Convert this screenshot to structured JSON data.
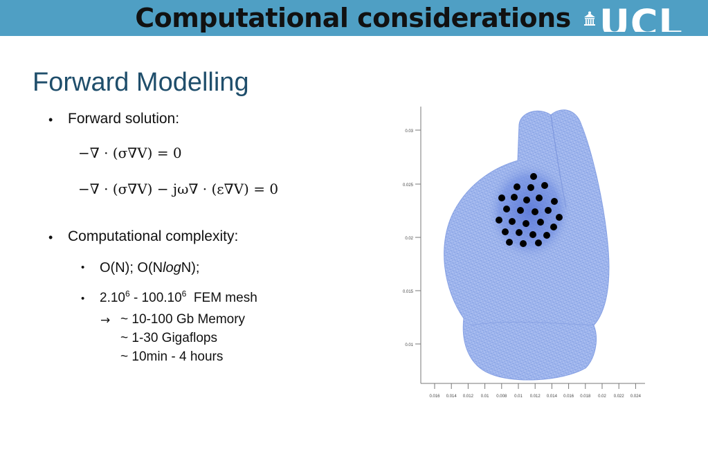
{
  "header": {
    "title": "Computational considerations",
    "logo_text": "UCL",
    "bar_color": "#4f9fc4"
  },
  "content": {
    "subheading": "Forward Modelling",
    "bullet_forward": "Forward solution:",
    "eq1": "−∇ · (σ∇V) = 0",
    "eq2": "−∇ · (σ∇V) − jω∇ · (ε∇V) = 0",
    "bullet_complexity": "Computational complexity:",
    "order_prefix": "O(N); O(N",
    "order_log": "log",
    "order_suffix": "N);",
    "mesh_a": "2.10",
    "mesh_exp_a": "6",
    "mesh_mid": " - 100.10",
    "mesh_exp_b": "6",
    "mesh_suffix": "  FEM mesh",
    "arrow": "→",
    "memory": "~ 10-100 Gb Memory",
    "gigaflops": "~ 1-30 Gigaflops",
    "time": "~ 10min - 4 hours"
  },
  "figure": {
    "y_ticks": [
      "0.03",
      "0.025",
      "0.02",
      "0.015",
      "0.01"
    ],
    "x_ticks": [
      "0.016",
      "0.014",
      "0.012",
      "0.01",
      "0.008",
      "0.01",
      "0.012",
      "0.014",
      "0.016",
      "0.018",
      "0.02",
      "0.022",
      "0.024"
    ],
    "mesh_color": "#9fb5e8",
    "electrode_color": "#000000"
  }
}
